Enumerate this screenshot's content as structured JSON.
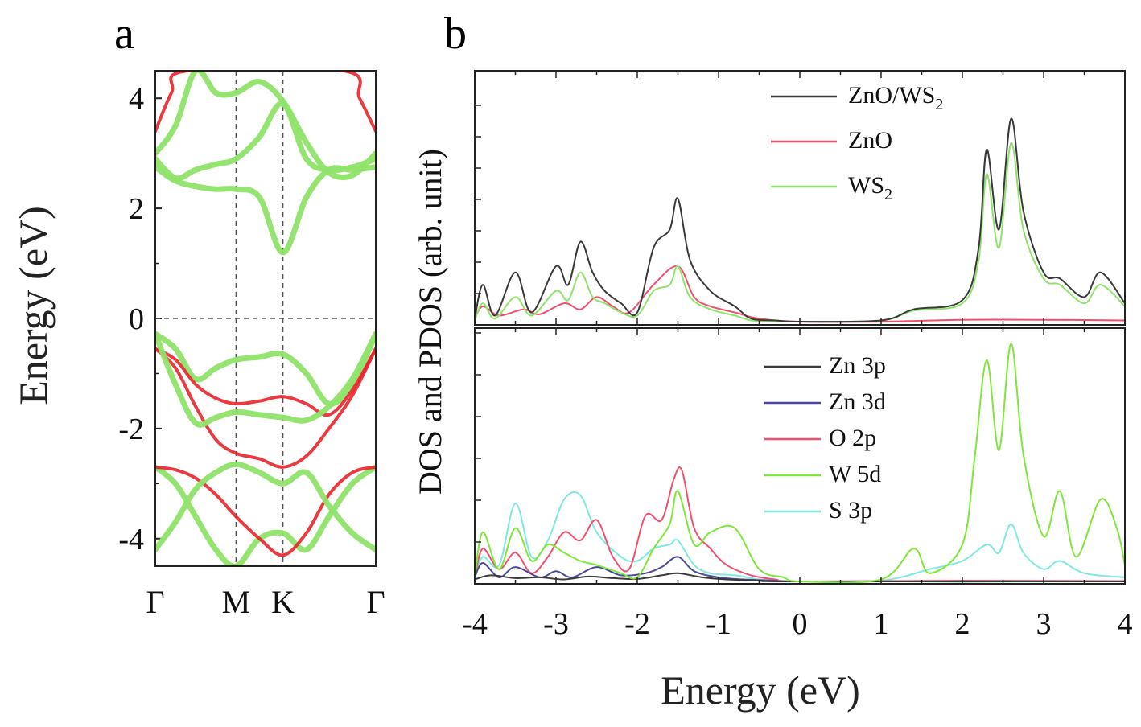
{
  "panels": {
    "a": "a",
    "b": "b"
  },
  "colors": {
    "wse2_green": "#8fe36a",
    "zno_red": "#e8242a",
    "total_dark": "#3a3a3a",
    "zn3d_blue": "#4a4a9a",
    "o2p_pink": "#f0506e",
    "w5d_green": "#7ee83a",
    "s3p_cyan": "#7fe8e0",
    "grid_dash": "#555555"
  },
  "chart_data": [
    {
      "id": "band-structure",
      "type": "line",
      "ylabel": "Energy (eV)",
      "ylim": [
        -4.5,
        4.5
      ],
      "yticks": [
        4,
        2,
        0,
        -2,
        -4
      ],
      "kpoints": [
        "Γ",
        "M",
        "K",
        "Γ"
      ],
      "kpositions": [
        0,
        1,
        1.58,
        2.73
      ],
      "fermi_level": 0,
      "series": [
        {
          "name": "",
          "color": "green",
          "x": [
            0,
            0.25,
            0.5,
            0.75,
            1,
            1.29,
            1.58,
            1.87,
            2.15,
            2.44,
            2.73
          ],
          "y": [
            -0.28,
            -0.55,
            -1.1,
            -0.9,
            -0.75,
            -0.7,
            -0.65,
            -1.0,
            -1.55,
            -1.2,
            -0.28
          ]
        },
        {
          "name": "",
          "color": "red",
          "x": [
            0,
            0.25,
            0.5,
            0.75,
            1,
            1.29,
            1.58,
            1.87,
            2.15,
            2.44,
            2.73
          ],
          "y": [
            -0.55,
            -0.75,
            -1.2,
            -1.45,
            -1.55,
            -1.5,
            -1.42,
            -1.55,
            -1.75,
            -1.3,
            -0.55
          ]
        },
        {
          "name": "",
          "color": "red",
          "x": [
            0,
            0.25,
            0.5,
            0.75,
            1,
            1.29,
            1.58,
            1.87,
            2.15,
            2.44,
            2.73
          ],
          "y": [
            -0.55,
            -0.9,
            -1.6,
            -2.2,
            -2.45,
            -2.55,
            -2.7,
            -2.5,
            -2.0,
            -1.4,
            -0.55
          ]
        },
        {
          "name": "",
          "color": "green",
          "x": [
            0,
            0.25,
            0.5,
            0.75,
            1,
            1.29,
            1.58,
            1.87,
            2.15,
            2.44,
            2.73
          ],
          "y": [
            -0.28,
            -1.2,
            -1.9,
            -1.8,
            -1.7,
            -1.75,
            -1.8,
            -1.85,
            -1.6,
            -1.1,
            -0.28
          ]
        },
        {
          "name": "",
          "color": "green",
          "x": [
            0,
            0.25,
            0.5,
            0.75,
            1,
            1.29,
            1.58,
            1.87,
            2.15,
            2.44,
            2.73
          ],
          "y": [
            -2.7,
            -3.0,
            -3.6,
            -4.2,
            -4.5,
            -4.0,
            -3.9,
            -4.2,
            -3.6,
            -3.0,
            -2.7
          ]
        },
        {
          "name": "",
          "color": "red",
          "x": [
            0,
            0.25,
            0.5,
            0.75,
            1,
            1.29,
            1.58,
            1.87,
            2.15,
            2.44,
            2.73
          ],
          "y": [
            -2.7,
            -2.75,
            -2.9,
            -3.2,
            -3.6,
            -4.0,
            -4.3,
            -3.9,
            -3.2,
            -2.8,
            -2.7
          ]
        },
        {
          "name": "",
          "color": "green",
          "x": [
            0,
            0.25,
            0.5,
            0.75,
            1,
            1.29,
            1.58,
            1.87,
            2.15,
            2.44,
            2.73
          ],
          "y": [
            -4.2,
            -3.7,
            -3.1,
            -2.8,
            -2.65,
            -2.8,
            -3.0,
            -2.8,
            -3.4,
            -3.9,
            -4.2
          ]
        },
        {
          "name": "",
          "color": "green",
          "x": [
            0,
            0.25,
            0.5,
            0.75,
            1,
            1.29,
            1.58,
            1.87,
            2.15,
            2.44,
            2.73
          ],
          "y": [
            2.75,
            2.5,
            2.4,
            2.35,
            2.35,
            2.2,
            1.2,
            2.2,
            2.7,
            2.7,
            2.75
          ]
        },
        {
          "name": "",
          "color": "green",
          "x": [
            0,
            0.25,
            0.5,
            0.75,
            1,
            1.29,
            1.58,
            1.87,
            2.15,
            2.44,
            2.73
          ],
          "y": [
            2.9,
            2.55,
            2.7,
            2.8,
            2.9,
            3.3,
            3.9,
            2.9,
            2.7,
            2.75,
            2.9
          ]
        },
        {
          "name": "",
          "color": "green",
          "x": [
            0,
            0.25,
            0.5,
            0.75,
            1,
            1.29,
            1.58,
            1.87,
            2.15,
            2.44,
            2.73
          ],
          "y": [
            3.0,
            3.5,
            4.5,
            4.1,
            4.1,
            4.3,
            3.95,
            3.2,
            2.65,
            2.6,
            3.0
          ]
        },
        {
          "name": "",
          "color": "red",
          "x": [
            0,
            0.2,
            0.4,
            2.33,
            2.53,
            2.73
          ],
          "y": [
            3.4,
            4.1,
            4.5,
            4.5,
            4.0,
            3.4
          ]
        }
      ]
    },
    {
      "id": "dos-total",
      "type": "line",
      "xlim": [
        -4,
        4
      ],
      "legend_position": "top-right",
      "series": [
        {
          "name": "ZnO/WS",
          "name_sub": "2",
          "color": "#3a3a3a",
          "x": [
            -4,
            -3.9,
            -3.75,
            -3.5,
            -3.3,
            -3,
            -2.85,
            -2.7,
            -2.55,
            -2.4,
            -2.2,
            -2,
            -1.8,
            -1.6,
            -1.5,
            -1.35,
            -1.1,
            -0.8,
            -0.6,
            -0.3,
            0,
            1,
            1.4,
            2,
            2.2,
            2.3,
            2.45,
            2.6,
            2.75,
            3,
            3.2,
            3.5,
            3.7,
            4
          ],
          "y": [
            0.05,
            0.6,
            0.1,
            0.8,
            0.15,
            0.9,
            0.6,
            1.3,
            0.8,
            0.5,
            0.3,
            0.15,
            1.2,
            1.5,
            2.0,
            1.0,
            0.5,
            0.25,
            0.05,
            0.02,
            0,
            0.02,
            0.2,
            0.35,
            1.2,
            2.8,
            1.5,
            3.3,
            1.8,
            0.8,
            0.7,
            0.4,
            0.8,
            0.3
          ]
        },
        {
          "name": "ZnO",
          "color": "#f0506e",
          "x": [
            -4,
            -3.9,
            -3.7,
            -3.4,
            -3.2,
            -2.9,
            -2.7,
            -2.5,
            -2.3,
            -2.1,
            -1.8,
            -1.5,
            -1.3,
            -1.1,
            -0.8,
            -0.5,
            0,
            1,
            2,
            3,
            4
          ],
          "y": [
            0.05,
            0.25,
            0.1,
            0.2,
            0.12,
            0.3,
            0.2,
            0.4,
            0.25,
            0.15,
            0.6,
            0.9,
            0.4,
            0.25,
            0.15,
            0.05,
            0,
            0,
            0.03,
            0.03,
            0.02
          ]
        },
        {
          "name": "WS",
          "name_sub": "2",
          "color": "#8fe36a",
          "x": [
            -4,
            -3.9,
            -3.75,
            -3.5,
            -3.3,
            -3,
            -2.85,
            -2.7,
            -2.55,
            -2.4,
            -2.2,
            -2,
            -1.8,
            -1.6,
            -1.5,
            -1.35,
            -1.1,
            -0.8,
            -0.6,
            -0.3,
            0,
            1,
            1.4,
            2,
            2.2,
            2.3,
            2.45,
            2.6,
            2.75,
            3,
            3.2,
            3.5,
            3.7,
            4
          ],
          "y": [
            0.02,
            0.3,
            0.05,
            0.4,
            0.1,
            0.5,
            0.35,
            0.8,
            0.4,
            0.3,
            0.15,
            0.1,
            0.5,
            0.6,
            0.9,
            0.4,
            0.2,
            0.1,
            0.02,
            0.01,
            0,
            0.02,
            0.18,
            0.3,
            1.0,
            2.4,
            1.2,
            2.9,
            1.5,
            0.7,
            0.6,
            0.3,
            0.6,
            0.25
          ]
        }
      ]
    },
    {
      "id": "pdos",
      "type": "line",
      "xlim": [
        -4,
        4
      ],
      "xticks": [
        -4,
        -3,
        -2,
        -1,
        0,
        1,
        2,
        3,
        4
      ],
      "xlabel": "Energy (eV)",
      "legend_position": "top-right",
      "series": [
        {
          "name": "Zn 3p",
          "color": "#3a3a3a",
          "x": [
            -4,
            -3.8,
            -3.5,
            -3.2,
            -2.9,
            -2.6,
            -2.3,
            -2,
            -1.7,
            -1.5,
            -1.2,
            -0.9,
            -0.5,
            0,
            4
          ],
          "y": [
            0.05,
            0.15,
            0.08,
            0.1,
            0.05,
            0.12,
            0.08,
            0.06,
            0.15,
            0.2,
            0.1,
            0.05,
            0.02,
            0,
            0
          ]
        },
        {
          "name": "Zn 3d",
          "color": "#4a4a9a",
          "x": [
            -4,
            -3.9,
            -3.7,
            -3.5,
            -3.2,
            -3,
            -2.8,
            -2.5,
            -2.2,
            -1.9,
            -1.7,
            -1.5,
            -1.3,
            -1,
            -0.7,
            -0.3,
            0,
            4
          ],
          "y": [
            0.1,
            0.45,
            0.1,
            0.35,
            0.1,
            0.25,
            0.1,
            0.35,
            0.15,
            0.2,
            0.35,
            0.6,
            0.25,
            0.1,
            0.05,
            0.02,
            0,
            0
          ]
        },
        {
          "name": "O 2p",
          "color": "#f0506e",
          "x": [
            -4,
            -3.9,
            -3.7,
            -3.5,
            -3.3,
            -3.1,
            -2.9,
            -2.7,
            -2.5,
            -2.3,
            -2.1,
            -1.9,
            -1.7,
            -1.55,
            -1.45,
            -1.3,
            -1.1,
            -0.9,
            -0.6,
            -0.3,
            0,
            2,
            4
          ],
          "y": [
            0.1,
            0.8,
            0.3,
            0.7,
            0.2,
            0.6,
            1.2,
            1.0,
            1.5,
            0.6,
            0.3,
            1.6,
            1.5,
            2.5,
            2.7,
            1.3,
            0.8,
            0.4,
            0.15,
            0.05,
            0,
            0.02,
            0.01
          ]
        },
        {
          "name": "W 5d",
          "color": "#7ee83a",
          "x": [
            -4,
            -3.9,
            -3.7,
            -3.5,
            -3.3,
            -3.1,
            -2.9,
            -2.7,
            -2.5,
            -2.2,
            -2,
            -1.8,
            -1.6,
            -1.5,
            -1.3,
            -1.1,
            -0.8,
            -0.5,
            -0.2,
            0,
            1,
            1.4,
            1.6,
            2,
            2.15,
            2.3,
            2.45,
            2.6,
            2.75,
            3,
            3.2,
            3.4,
            3.7,
            3.9,
            4
          ],
          "y": [
            0.1,
            1.2,
            0.3,
            1.3,
            0.5,
            0.9,
            0.7,
            0.5,
            0.4,
            0.2,
            0.1,
            0.8,
            1.4,
            2.2,
            0.9,
            1.2,
            1.3,
            0.3,
            0.1,
            0,
            0.05,
            0.8,
            0.2,
            0.9,
            3.0,
            5.4,
            3.2,
            5.8,
            3.1,
            1.1,
            2.2,
            0.6,
            2.0,
            1.3,
            0.4
          ]
        },
        {
          "name": "S 3p",
          "color": "#7fe8e0",
          "x": [
            -4,
            -3.9,
            -3.7,
            -3.5,
            -3.3,
            -3.1,
            -2.9,
            -2.7,
            -2.5,
            -2.2,
            -2,
            -1.8,
            -1.6,
            -1.5,
            -1.3,
            -1.1,
            -0.8,
            -0.5,
            -0.2,
            0,
            1,
            1.6,
            2,
            2.3,
            2.45,
            2.6,
            2.75,
            3,
            3.2,
            3.5,
            4
          ],
          "y": [
            0.1,
            0.6,
            0.4,
            1.9,
            0.6,
            1.0,
            2.0,
            2.1,
            1.2,
            0.6,
            0.5,
            0.8,
            0.9,
            1.0,
            0.4,
            0.2,
            0.15,
            0.05,
            0.02,
            0,
            0.02,
            0.3,
            0.5,
            0.9,
            0.7,
            1.4,
            0.7,
            0.3,
            0.5,
            0.2,
            0.1
          ]
        }
      ]
    }
  ],
  "band_axis": {
    "ylabel": "Energy (eV)",
    "ytick_labels": [
      "4",
      "2",
      "0",
      "-2",
      "-4"
    ],
    "k_labels": [
      "Γ",
      "M",
      "K",
      "Γ"
    ]
  },
  "dos_axis": {
    "ylabel": "DOS and PDOS (arb. unit)",
    "xlabel": "Energy (eV)",
    "xtick_labels": [
      "-4",
      "-3",
      "-2",
      "-1",
      "0",
      "1",
      "2",
      "3",
      "4"
    ]
  },
  "legend_top": [
    {
      "text": "ZnO/WS",
      "sub": "2",
      "color": "#3a3a3a"
    },
    {
      "text": "ZnO",
      "sub": "",
      "color": "#f0506e"
    },
    {
      "text": "WS",
      "sub": "2",
      "color": "#8fe36a"
    }
  ],
  "legend_bottom": [
    {
      "text": "Zn 3p",
      "color": "#3a3a3a"
    },
    {
      "text": "Zn 3d",
      "color": "#4a4a9a"
    },
    {
      "text": "O 2p",
      "color": "#f0506e"
    },
    {
      "text": "W 5d",
      "color": "#7ee83a"
    },
    {
      "text": "S 3p",
      "color": "#7fe8e0"
    }
  ]
}
